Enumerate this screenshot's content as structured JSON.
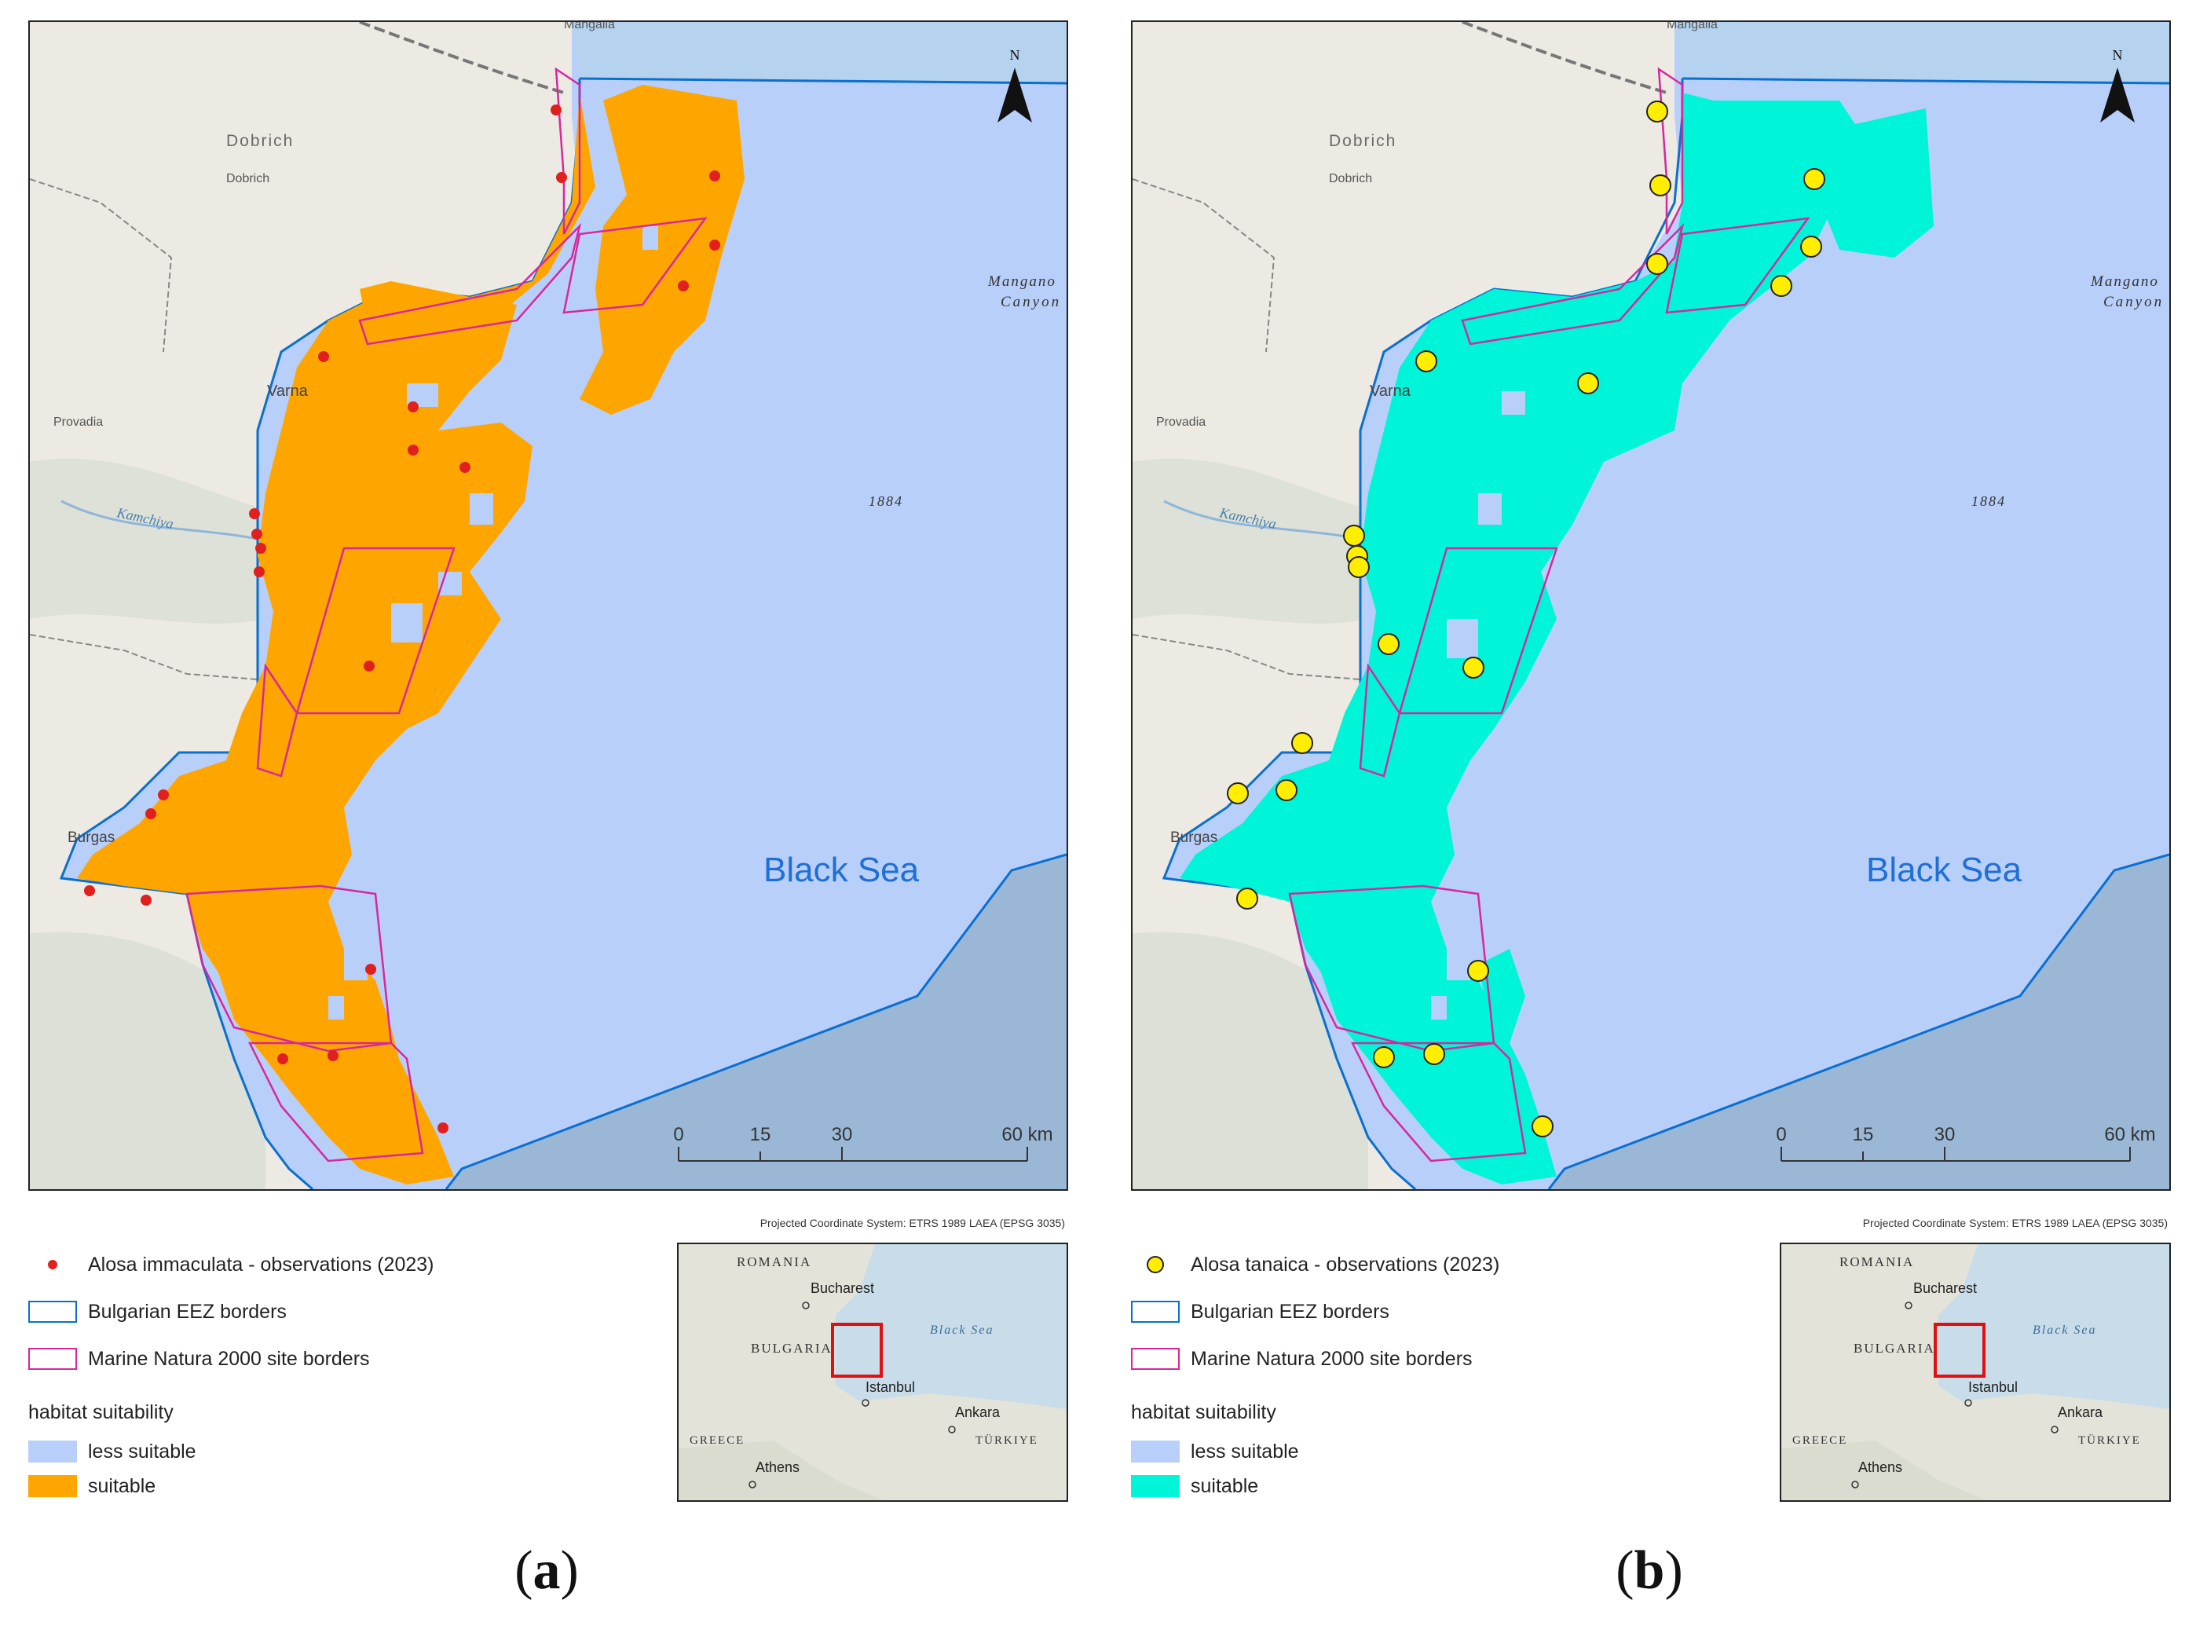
{
  "panels": [
    {
      "id": "a",
      "caption_letter": "a",
      "species_label": "Alosa immaculata - observations (2023)",
      "suitable_color": "#ffa500",
      "marker_color": "#e0201e",
      "marker_style": "small-red-dot"
    },
    {
      "id": "b",
      "caption_letter": "b",
      "species_label": "Alosa tanaica - observations (2023)",
      "suitable_color": "#00f5d8",
      "marker_color": "#ffee00",
      "marker_style": "large-yellow-circle-black-outline"
    }
  ],
  "map_labels": {
    "dobrich_region": "Dobrich",
    "dobrich_town": "Dobrich",
    "varna": "Varna",
    "provadia": "Provadia",
    "kamchiya": "Kamchiya",
    "burgas": "Burgas",
    "mangalia": "Mangalia",
    "canyon_line1": "Mangano",
    "canyon_line2": "Canyon",
    "depth": "1884",
    "black_sea": "Black Sea",
    "north": "N"
  },
  "scale_bar": {
    "ticks": [
      "0",
      "15",
      "30"
    ],
    "end_label": "60 km"
  },
  "legend": {
    "eez": "Bulgarian EEZ borders",
    "natura": "Marine Natura 2000 site borders",
    "heading": "habitat suitability",
    "less_suitable": "less suitable",
    "suitable": "suitable"
  },
  "inset": {
    "crs": "Projected Coordinate System: ETRS 1989 LAEA (EPSG 3035)",
    "romania": "ROMANIA",
    "bucharest": "Bucharest",
    "bulgaria": "BULGARIA",
    "black_sea": "Black Sea",
    "istanbul": "Istanbul",
    "ankara": "Ankara",
    "greece": "GREECE",
    "turkiye": "TÜRKIYE",
    "athens": "Athens"
  },
  "colors": {
    "less_suitable": "#b8cffa",
    "eez_border": "#0a6fd0",
    "natura_border": "#d8279d",
    "land": "#eceae3",
    "deep_sea": "#9ab7d6",
    "inset_box": "#e01010"
  }
}
